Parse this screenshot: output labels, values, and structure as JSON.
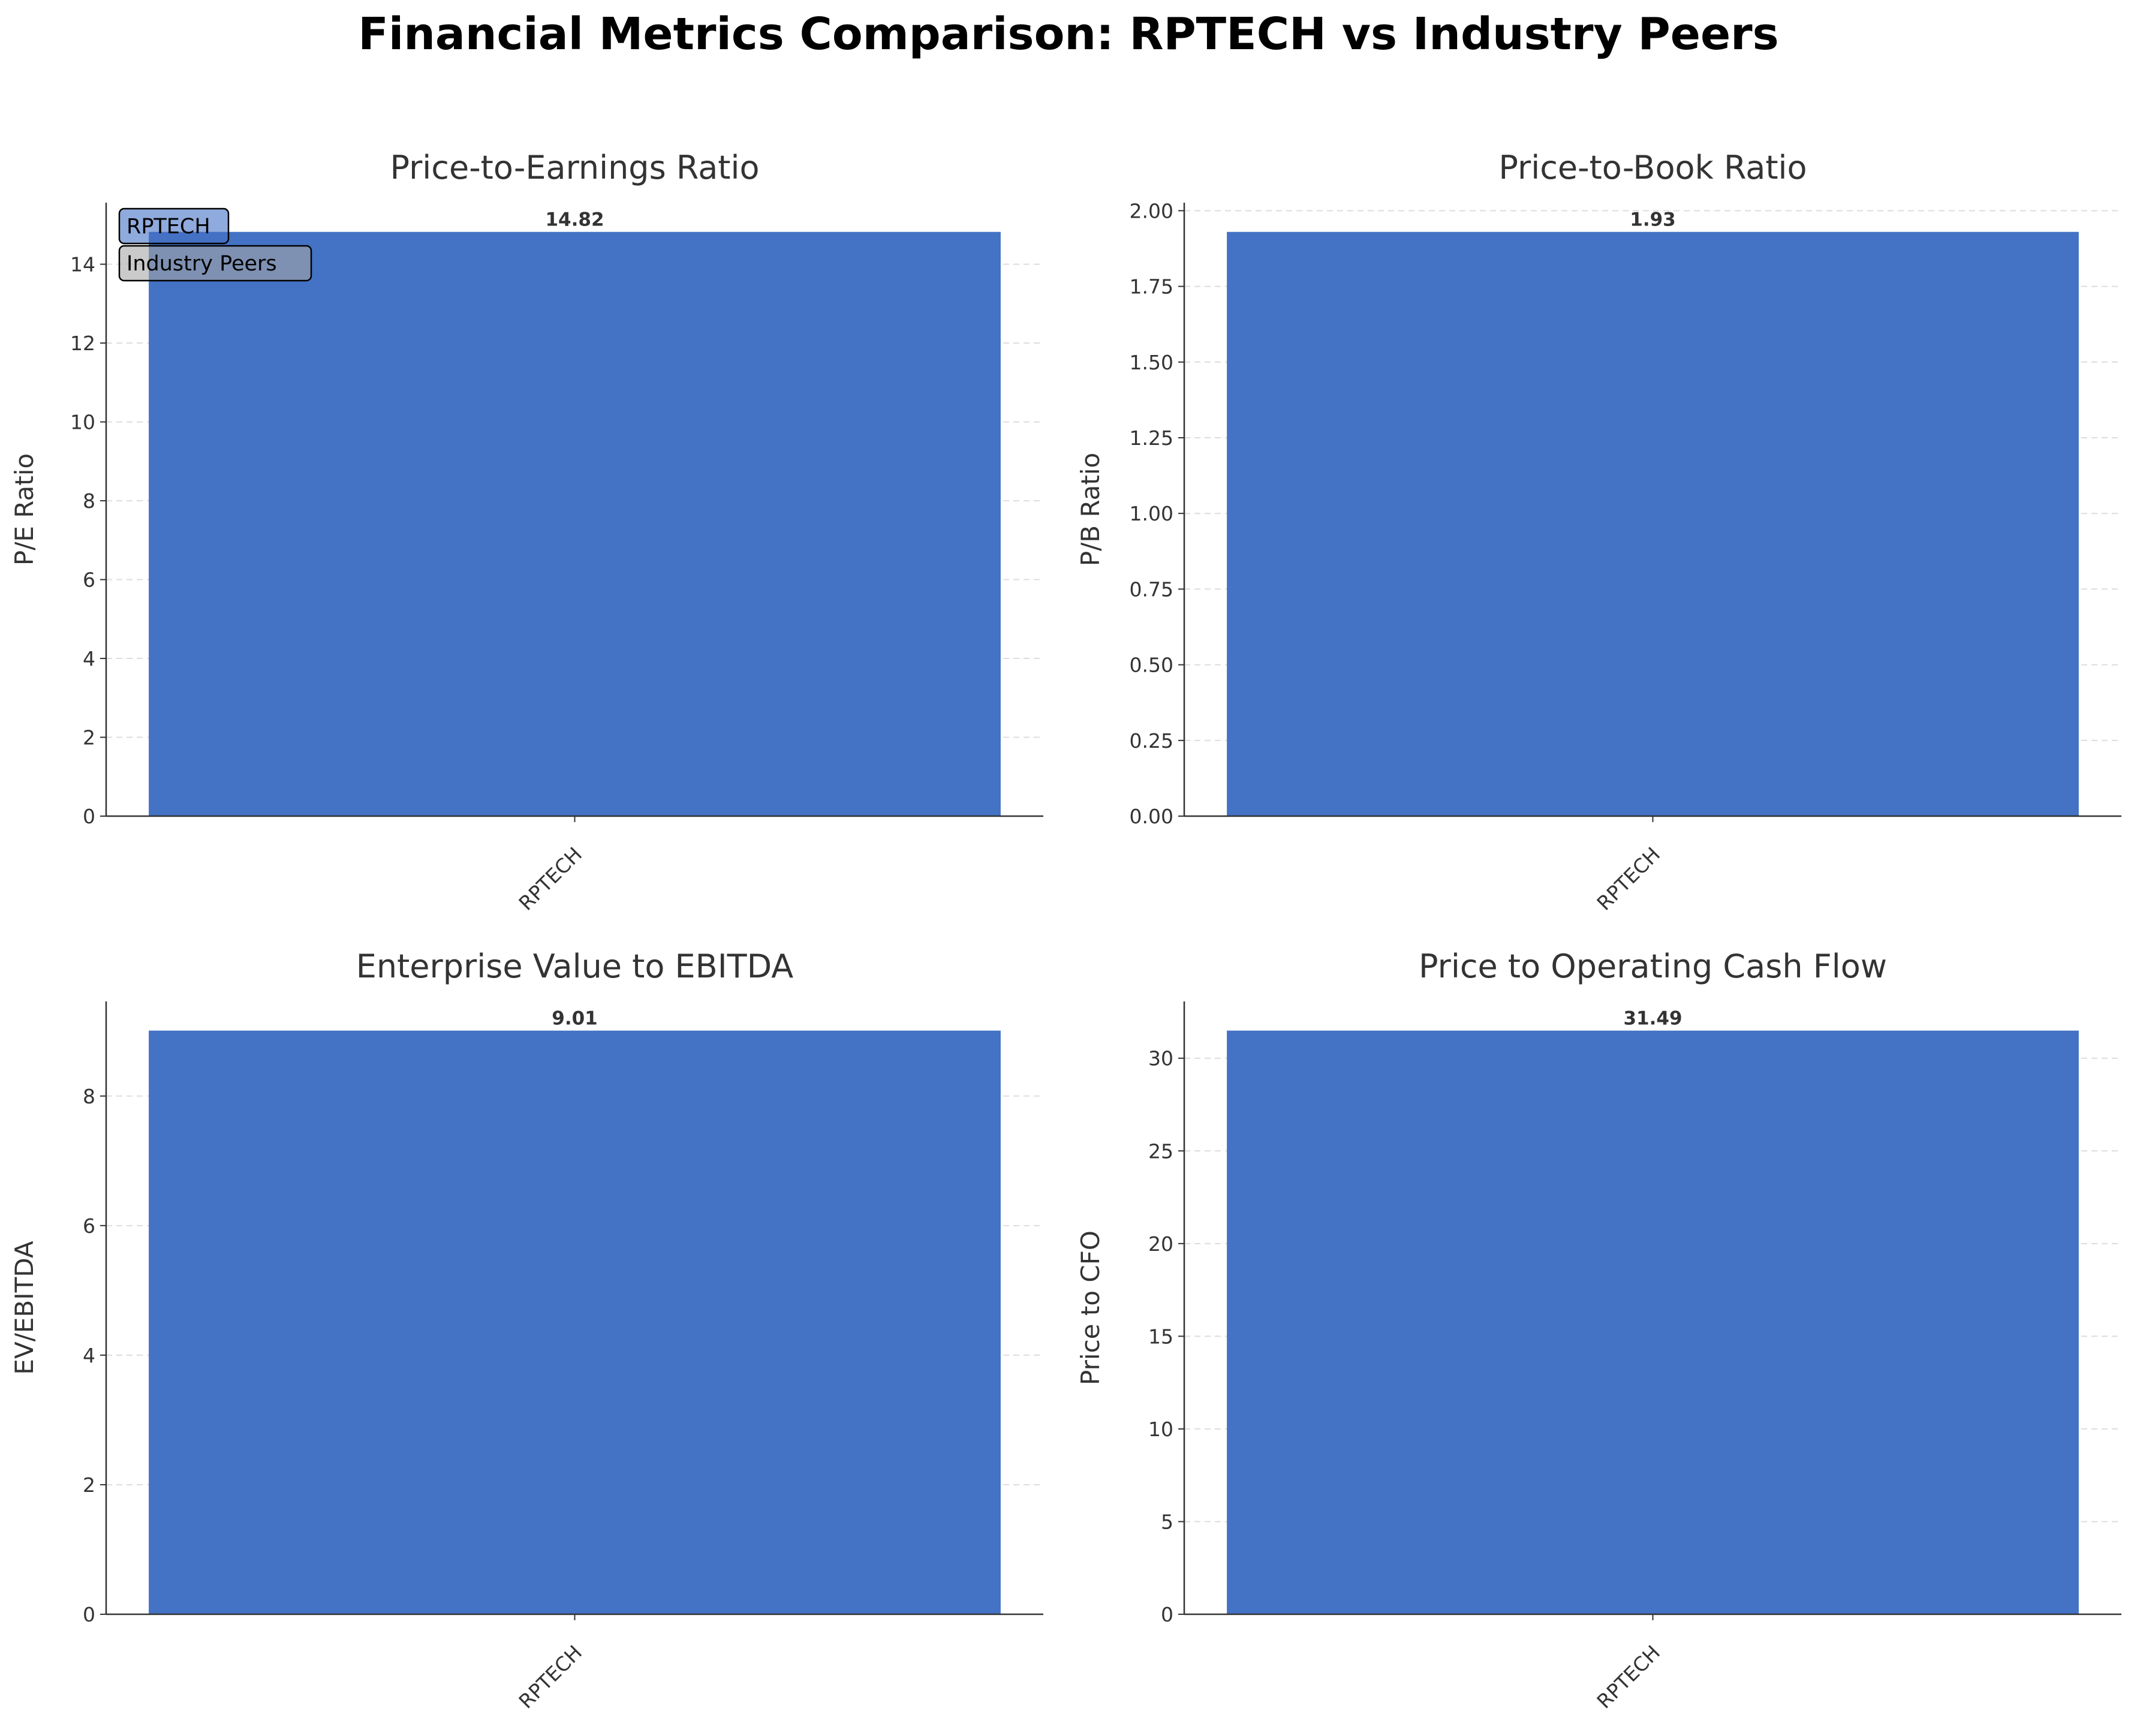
{
  "figure": {
    "title": "Financial Metrics Comparison: RPTECH vs Industry Peers"
  },
  "colors": {
    "rptech": "#4472C4",
    "industry_peers": "#A6A6A6",
    "axis": "#333333",
    "grid": "#dddddd",
    "text": "#333333"
  },
  "legend": {
    "location": "top-left of first subplot",
    "entries": [
      {
        "label": "RPTECH",
        "color": "#4472C4"
      },
      {
        "label": "Industry Peers",
        "color": "#A6A6A6"
      }
    ]
  },
  "chart_data": [
    {
      "type": "bar",
      "title": "Price-to-Earnings Ratio",
      "xlabel": "",
      "ylabel": "P/E Ratio",
      "categories": [
        "RPTECH"
      ],
      "values": [
        14.82
      ],
      "value_labels": [
        "14.82"
      ],
      "ylim": [
        0,
        15.561
      ],
      "yticks": [
        0,
        2,
        4,
        6,
        8,
        10,
        12,
        14
      ],
      "ytick_labels": [
        "0",
        "2",
        "4",
        "6",
        "8",
        "10",
        "12",
        "14"
      ],
      "grid": "y dashed",
      "legend": true
    },
    {
      "type": "bar",
      "title": "Price-to-Book Ratio",
      "xlabel": "",
      "ylabel": "P/B Ratio",
      "categories": [
        "RPTECH"
      ],
      "values": [
        1.93
      ],
      "value_labels": [
        "1.93"
      ],
      "ylim": [
        0,
        2.0265
      ],
      "yticks": [
        0,
        0.25,
        0.5,
        0.75,
        1.0,
        1.25,
        1.5,
        1.75,
        2.0
      ],
      "ytick_labels": [
        "0.00",
        "0.25",
        "0.50",
        "0.75",
        "1.00",
        "1.25",
        "1.50",
        "1.75",
        "2.00"
      ],
      "grid": "y dashed",
      "legend": false
    },
    {
      "type": "bar",
      "title": "Enterprise Value to EBITDA",
      "xlabel": "",
      "ylabel": "EV/EBITDA",
      "categories": [
        "RPTECH"
      ],
      "values": [
        9.01
      ],
      "value_labels": [
        "9.01"
      ],
      "ylim": [
        0,
        9.4605
      ],
      "yticks": [
        0,
        2,
        4,
        6,
        8
      ],
      "ytick_labels": [
        "0",
        "2",
        "4",
        "6",
        "8"
      ],
      "grid": "y dashed",
      "legend": false
    },
    {
      "type": "bar",
      "title": "Price to Operating Cash Flow",
      "xlabel": "",
      "ylabel": "Price to CFO",
      "categories": [
        "RPTECH"
      ],
      "values": [
        31.49
      ],
      "value_labels": [
        "31.49"
      ],
      "ylim": [
        0,
        33.0645
      ],
      "yticks": [
        0,
        5,
        10,
        15,
        20,
        25,
        30
      ],
      "ytick_labels": [
        "0",
        "5",
        "10",
        "15",
        "20",
        "25",
        "30"
      ],
      "grid": "y dashed",
      "legend": false
    }
  ]
}
